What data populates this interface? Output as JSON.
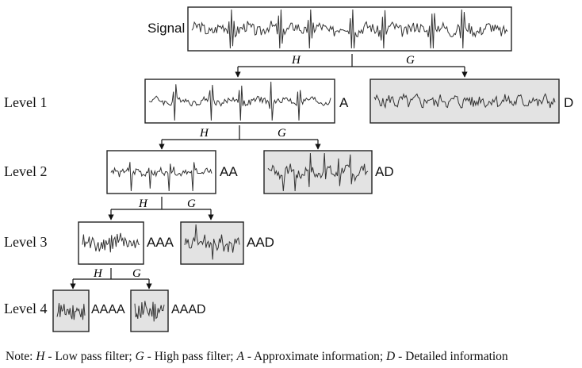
{
  "signal_label": "Signal",
  "filters": {
    "low": "H",
    "high": "G"
  },
  "levels": [
    {
      "label": "Level 1",
      "approx_label": "A",
      "detail_label": "D"
    },
    {
      "label": "Level 2",
      "approx_label": "AA",
      "detail_label": "AD"
    },
    {
      "label": "Level 3",
      "approx_label": "AAA",
      "detail_label": "AAD"
    },
    {
      "label": "Level 4",
      "approx_label": "AAAA",
      "detail_label": "AAAD"
    }
  ],
  "note": {
    "prefix": "Note: ",
    "h_symbol": "H",
    "h_text": " - Low pass filter; ",
    "g_symbol": "G",
    "g_text": " - High pass filter; ",
    "a_symbol": "A",
    "a_text": " - Approximate information; ",
    "d_symbol": "D",
    "d_text": " - Detailed information"
  },
  "colors": {
    "detail_fill": "#e3e3e3",
    "line": "#111111"
  }
}
